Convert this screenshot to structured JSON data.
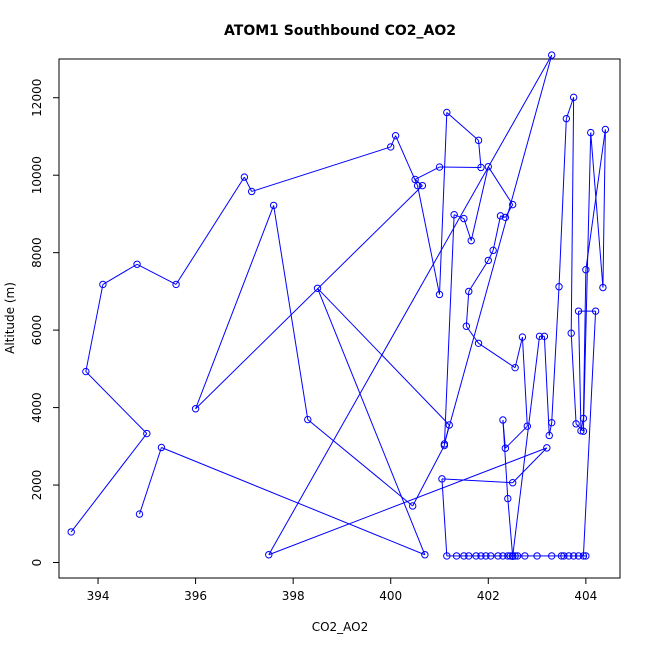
{
  "chart_data": {
    "type": "line",
    "title": "ATOM1 Southbound CO2_AO2",
    "xlabel": "CO2_AO2",
    "ylabel": "Altitude (m)",
    "xlim": [
      393.2,
      404.7
    ],
    "ylim": [
      -400,
      13000
    ],
    "xticks": [
      394,
      396,
      398,
      400,
      402,
      404
    ],
    "yticks": [
      0,
      2000,
      4000,
      6000,
      8000,
      10000,
      12000
    ],
    "grid": false,
    "series_color": "#0000ff",
    "marker": "open-circle",
    "x": [
      393.45,
      395.0,
      393.75,
      394.1,
      394.8,
      395.6,
      397.0,
      397.15,
      400.0,
      400.1,
      400.55,
      401.0,
      401.15,
      401.8,
      401.85,
      401.0,
      400.5,
      400.65,
      396.0,
      397.6,
      398.3,
      400.45,
      401.1,
      401.3,
      401.5,
      401.65,
      402.0,
      402.5,
      402.35,
      402.25,
      402.1,
      402.0,
      401.6,
      401.55,
      401.8,
      402.55,
      402.7,
      402.8,
      402.35,
      402.3,
      402.4,
      402.5,
      403.05,
      403.15,
      403.25,
      403.3,
      403.45,
      403.6,
      403.75,
      403.7,
      403.8,
      403.95,
      404.1,
      404.35,
      404.4,
      404.0,
      403.95,
      403.9,
      403.85,
      404.2,
      403.95,
      404.0,
      403.85,
      403.75,
      403.65,
      403.55,
      403.5,
      403.3,
      403.0,
      402.75,
      402.6,
      402.55,
      402.5,
      402.45,
      402.4,
      402.3,
      402.2,
      402.05,
      401.95,
      401.85,
      401.75,
      401.6,
      401.5,
      401.35,
      401.15,
      401.05,
      402.5,
      403.2,
      397.5,
      403.3,
      401.1,
      401.2,
      398.5,
      400.7,
      395.3,
      394.85
    ],
    "y": [
      790,
      3330,
      4930,
      7180,
      7700,
      7180,
      9950,
      9580,
      10730,
      11020,
      9730,
      6920,
      11620,
      10900,
      10200,
      10210,
      9890,
      9730,
      3970,
      9220,
      3690,
      1460,
      3020,
      8980,
      8880,
      8310,
      10220,
      9240,
      8910,
      8950,
      8060,
      7800,
      7000,
      6100,
      5660,
      5030,
      5820,
      3520,
      2950,
      3680,
      1650,
      160,
      5840,
      5840,
      3280,
      3610,
      7120,
      11460,
      12010,
      5920,
      3580,
      3390,
      11100,
      7100,
      11180,
      7560,
      3720,
      3400,
      6490,
      6490,
      170,
      170,
      170,
      170,
      170,
      170,
      170,
      170,
      170,
      170,
      170,
      170,
      170,
      170,
      170,
      170,
      170,
      170,
      170,
      170,
      170,
      170,
      170,
      170,
      170,
      2160,
      2060,
      2960,
      200,
      13100,
      3060,
      3550,
      7080,
      200,
      2970,
      1250
    ]
  }
}
